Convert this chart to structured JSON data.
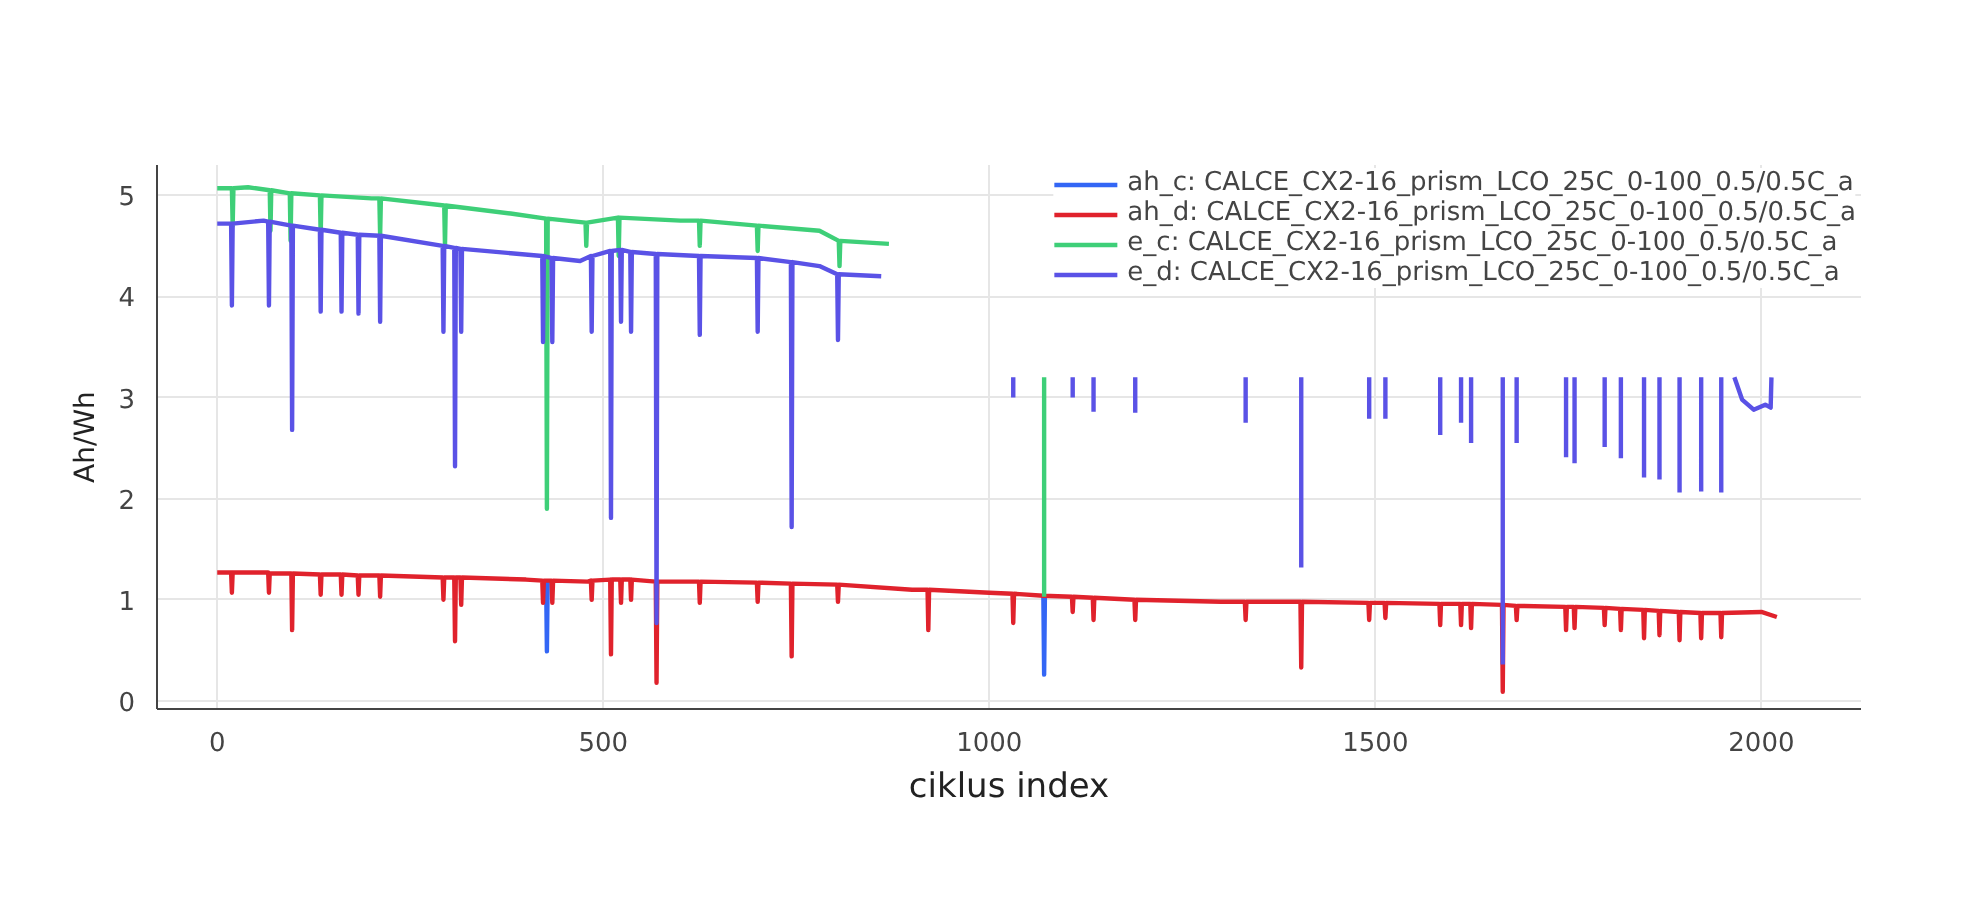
{
  "chart_data": {
    "type": "line",
    "xlabel": "ciklus index",
    "ylabel": "Ah/Wh",
    "xlim": [
      -78,
      2129
    ],
    "ylim": [
      -0.08,
      5.3
    ],
    "xticks": [
      0,
      500,
      1000,
      1500,
      2000
    ],
    "yticks": [
      0,
      1,
      2,
      3,
      4,
      5
    ],
    "grid": true,
    "legend": "top right",
    "line_style": "solid",
    "marker": "none",
    "series": [
      {
        "name": "ah_c: CALCE_CX2-16_prism_LCO_25C_0-100_0.5/0.5C_a",
        "color": "#3366f5",
        "x": [
          426,
          427,
          428,
          null,
          1070,
          1071,
          1072
        ],
        "values": [
          1.19,
          0.49,
          1.19,
          null,
          1.04,
          0.26,
          1.04
        ]
      },
      {
        "name": "ah_d: CALCE_CX2-16_prism_LCO_25C_0-100_0.5/0.5C_a",
        "color": "#e0222c",
        "x": [
          0,
          18,
          19,
          20,
          66,
          67,
          68,
          96,
          97,
          98,
          133,
          134,
          135,
          160,
          161,
          162,
          182,
          183,
          184,
          210,
          211,
          212,
          292,
          293,
          294,
          307,
          308,
          309,
          315,
          316,
          317,
          400,
          421,
          422,
          423,
          433,
          434,
          435,
          480,
          484,
          485,
          486,
          509,
          510,
          511,
          522,
          523,
          524,
          535,
          536,
          537,
          568,
          569,
          570,
          624,
          625,
          626,
          699,
          700,
          701,
          743,
          744,
          745,
          803,
          804,
          805,
          900,
          920,
          921,
          922,
          1000,
          1030,
          1031,
          1032,
          1070,
          1107,
          1108,
          1109,
          1134,
          1135,
          1136,
          1188,
          1189,
          1190,
          1300,
          1331,
          1332,
          1333,
          1403,
          1404,
          1405,
          1491,
          1492,
          1493,
          1512,
          1513,
          1514,
          1583,
          1584,
          1585,
          1610,
          1611,
          1612,
          1623,
          1624,
          1625,
          1664,
          1665,
          1666,
          1682,
          1683,
          1684,
          1746,
          1747,
          1748,
          1757,
          1758,
          1759,
          1796,
          1797,
          1798,
          1817,
          1818,
          1819,
          1847,
          1848,
          1849,
          1867,
          1868,
          1869,
          1893,
          1894,
          1895,
          1921,
          1922,
          1923,
          1947,
          1948,
          1949,
          2000,
          2020
        ],
        "values": [
          1.27,
          1.27,
          1.07,
          1.27,
          1.27,
          1.07,
          1.26,
          1.26,
          0.7,
          1.26,
          1.25,
          1.05,
          1.25,
          1.25,
          1.05,
          1.25,
          1.24,
          1.05,
          1.24,
          1.24,
          1.03,
          1.24,
          1.22,
          1.0,
          1.22,
          1.22,
          0.59,
          1.22,
          1.22,
          0.95,
          1.22,
          1.2,
          1.19,
          0.97,
          1.19,
          1.19,
          0.97,
          1.19,
          1.18,
          1.19,
          1.0,
          1.19,
          1.2,
          0.46,
          1.2,
          1.2,
          0.97,
          1.2,
          1.2,
          1.0,
          1.2,
          1.18,
          0.18,
          1.18,
          1.18,
          0.97,
          1.18,
          1.17,
          0.98,
          1.17,
          1.16,
          0.44,
          1.16,
          1.15,
          0.98,
          1.15,
          1.1,
          1.1,
          0.7,
          1.1,
          1.07,
          1.06,
          0.77,
          1.06,
          1.04,
          1.03,
          0.88,
          1.03,
          1.02,
          0.8,
          1.02,
          1.0,
          0.8,
          1.0,
          0.98,
          0.98,
          0.8,
          0.98,
          0.98,
          0.33,
          0.98,
          0.97,
          0.8,
          0.97,
          0.97,
          0.82,
          0.97,
          0.96,
          0.75,
          0.96,
          0.96,
          0.75,
          0.96,
          0.96,
          0.72,
          0.96,
          0.95,
          0.09,
          0.95,
          0.94,
          0.8,
          0.94,
          0.93,
          0.7,
          0.93,
          0.93,
          0.72,
          0.93,
          0.92,
          0.75,
          0.92,
          0.91,
          0.7,
          0.91,
          0.9,
          0.62,
          0.9,
          0.89,
          0.65,
          0.89,
          0.88,
          0.6,
          0.88,
          0.87,
          0.62,
          0.87,
          0.87,
          0.63,
          0.87,
          0.88,
          0.83
        ]
      },
      {
        "name": "e_c: CALCE_CX2-16_prism_LCO_25C_0-100_0.5/0.5C_a",
        "color": "#3ecf78",
        "x": [
          0,
          19,
          20,
          21,
          40,
          68,
          69,
          70,
          94,
          95,
          96,
          133,
          134,
          135,
          200,
          210,
          211,
          212,
          294,
          295,
          296,
          380,
          426,
          427,
          428,
          477,
          478,
          479,
          519,
          520,
          521,
          600,
          624,
          625,
          626,
          699,
          700,
          701,
          780,
          805,
          806,
          807,
          870,
          null,
          1071,
          1071
        ],
        "values": [
          5.07,
          5.07,
          4.7,
          5.07,
          5.08,
          5.05,
          4.65,
          5.05,
          5.02,
          4.55,
          5.02,
          5.0,
          4.6,
          5.0,
          4.97,
          4.97,
          4.6,
          4.97,
          4.9,
          4.5,
          4.9,
          4.82,
          4.77,
          1.9,
          4.77,
          4.73,
          4.5,
          4.73,
          4.78,
          4.4,
          4.78,
          4.75,
          4.75,
          4.5,
          4.75,
          4.7,
          4.45,
          4.7,
          4.65,
          4.55,
          4.3,
          4.55,
          4.52,
          null,
          3.2,
          1.03
        ]
      },
      {
        "name": "e_d: CALCE_CX2-16_prism_LCO_25C_0-100_0.5/0.5C_a",
        "color": "#5a52e6",
        "x": [
          0,
          18,
          19,
          20,
          60,
          66,
          67,
          68,
          96,
          97,
          98,
          133,
          134,
          135,
          160,
          161,
          162,
          182,
          183,
          184,
          210,
          211,
          212,
          292,
          293,
          294,
          307,
          308,
          309,
          315,
          316,
          317,
          421,
          422,
          423,
          433,
          434,
          435,
          470,
          484,
          485,
          486,
          509,
          510,
          511,
          522,
          523,
          524,
          535,
          536,
          537,
          568,
          569,
          570,
          624,
          625,
          626,
          699,
          700,
          701,
          743,
          744,
          745,
          780,
          803,
          804,
          805,
          860,
          null,
          1031,
          1031,
          null,
          1108,
          1108,
          null,
          1135,
          1135,
          null,
          1189,
          1189,
          null,
          1332,
          1332,
          null,
          1404,
          1404,
          null,
          1492,
          1492,
          null,
          1513,
          1513,
          null,
          1584,
          1584,
          null,
          1611,
          1611,
          null,
          1624,
          1624,
          null,
          1665,
          1665,
          null,
          1683,
          1683,
          null,
          1747,
          1747,
          null,
          1758,
          1758,
          null,
          1797,
          1797,
          null,
          1818,
          1818,
          null,
          1848,
          1848,
          null,
          1868,
          1868,
          null,
          1894,
          1894,
          null,
          1922,
          1922,
          null,
          1948,
          1948,
          null,
          1965,
          1975,
          1990,
          2005,
          2012,
          2013
        ],
        "values": [
          4.72,
          4.72,
          3.91,
          4.72,
          4.75,
          4.74,
          3.91,
          4.74,
          4.7,
          2.68,
          4.7,
          4.66,
          3.85,
          4.66,
          4.63,
          3.85,
          4.63,
          4.61,
          3.83,
          4.61,
          4.6,
          3.75,
          4.6,
          4.5,
          3.65,
          4.5,
          4.48,
          2.32,
          4.48,
          4.47,
          3.65,
          4.47,
          4.4,
          3.55,
          4.4,
          4.38,
          3.55,
          4.38,
          4.35,
          4.4,
          3.65,
          4.4,
          4.45,
          1.81,
          4.45,
          4.46,
          3.75,
          4.46,
          4.44,
          3.65,
          4.44,
          4.42,
          0.77,
          4.42,
          4.4,
          3.62,
          4.4,
          4.38,
          3.65,
          4.38,
          4.34,
          1.72,
          4.34,
          4.3,
          4.22,
          3.57,
          4.22,
          4.2,
          null,
          3.2,
          3.0,
          null,
          3.2,
          3.0,
          null,
          3.2,
          2.86,
          null,
          3.2,
          2.85,
          null,
          3.2,
          2.75,
          null,
          3.2,
          1.32,
          null,
          3.2,
          2.79,
          null,
          3.2,
          2.79,
          null,
          3.2,
          2.63,
          null,
          3.2,
          2.75,
          null,
          3.2,
          2.55,
          null,
          3.2,
          0.36,
          null,
          3.2,
          2.55,
          null,
          3.2,
          2.41,
          null,
          3.2,
          2.35,
          null,
          3.2,
          2.51,
          null,
          3.2,
          2.4,
          null,
          3.2,
          2.21,
          null,
          3.2,
          2.19,
          null,
          3.2,
          2.06,
          null,
          3.2,
          2.07,
          null,
          3.2,
          2.06,
          null,
          3.2,
          2.98,
          2.88,
          2.93,
          2.9,
          3.2
        ]
      }
    ]
  }
}
